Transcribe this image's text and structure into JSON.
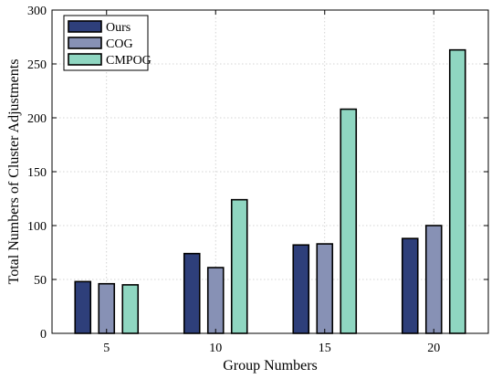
{
  "chart_data": {
    "type": "bar",
    "categories": [
      "5",
      "10",
      "15",
      "20"
    ],
    "series": [
      {
        "name": "Ours",
        "color": "#2e3f7a",
        "values": [
          48,
          74,
          82,
          88
        ]
      },
      {
        "name": "COG",
        "color": "#8791b5",
        "values": [
          46,
          61,
          83,
          100
        ]
      },
      {
        "name": "CMPOG",
        "color": "#8fd6c1",
        "values": [
          45,
          124,
          208,
          263
        ]
      }
    ],
    "xlabel": "Group Numbers",
    "ylabel": "Total Numbers of Cluster Adjustments",
    "ylim": [
      0,
      300
    ],
    "yticks": [
      0,
      50,
      100,
      150,
      200,
      250,
      300
    ],
    "grid": true,
    "legend_position": "top-left"
  }
}
